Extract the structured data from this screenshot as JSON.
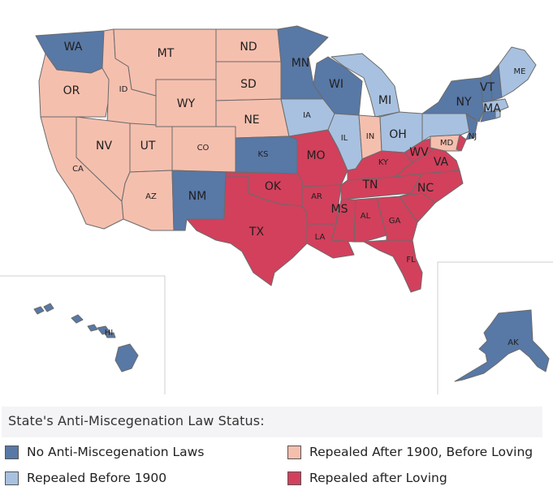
{
  "categories": {
    "none": {
      "label": "No Anti-Miscegenation Laws",
      "color": "#5878a6"
    },
    "pre1900": {
      "label": "Repealed Before 1900",
      "color": "#a8c1e0"
    },
    "post1900": {
      "label": "Repealed After 1900, Before Loving",
      "color": "#f5bfae"
    },
    "loving": {
      "label": "Repealed after Loving",
      "color": "#d2405c"
    }
  },
  "legend": {
    "title": "State's Anti-Miscegenation Law Status:",
    "order": [
      "none",
      "post1900",
      "pre1900",
      "loving"
    ]
  },
  "states": {
    "WA": {
      "label": "WA",
      "status": "none"
    },
    "OR": {
      "label": "OR",
      "status": "post1900"
    },
    "CA": {
      "label": "CA",
      "status": "post1900"
    },
    "ID": {
      "label": "ID",
      "status": "post1900"
    },
    "NV": {
      "label": "NV",
      "status": "post1900"
    },
    "MT": {
      "label": "MT",
      "status": "post1900"
    },
    "WY": {
      "label": "WY",
      "status": "post1900"
    },
    "UT": {
      "label": "UT",
      "status": "post1900"
    },
    "AZ": {
      "label": "AZ",
      "status": "post1900"
    },
    "CO": {
      "label": "CO",
      "status": "post1900"
    },
    "NM": {
      "label": "NM",
      "status": "none"
    },
    "ND": {
      "label": "ND",
      "status": "post1900"
    },
    "SD": {
      "label": "SD",
      "status": "post1900"
    },
    "NE": {
      "label": "NE",
      "status": "post1900"
    },
    "KS": {
      "label": "KS",
      "status": "none"
    },
    "OK": {
      "label": "OK",
      "status": "loving"
    },
    "TX": {
      "label": "TX",
      "status": "loving"
    },
    "MN": {
      "label": "MN",
      "status": "none"
    },
    "IA": {
      "label": "IA",
      "status": "pre1900"
    },
    "MO": {
      "label": "MO",
      "status": "loving"
    },
    "AR": {
      "label": "AR",
      "status": "loving"
    },
    "LA": {
      "label": "LA",
      "status": "loving"
    },
    "WI": {
      "label": "WI",
      "status": "none"
    },
    "IL": {
      "label": "IL",
      "status": "pre1900"
    },
    "MI": {
      "label": "MI",
      "status": "pre1900"
    },
    "IN": {
      "label": "IN",
      "status": "post1900"
    },
    "OH": {
      "label": "OH",
      "status": "pre1900"
    },
    "KY": {
      "label": "KY",
      "status": "loving"
    },
    "TN": {
      "label": "TN",
      "status": "loving"
    },
    "MS": {
      "label": "MS",
      "status": "loving"
    },
    "AL": {
      "label": "AL",
      "status": "loving"
    },
    "GA": {
      "label": "GA",
      "status": "loving"
    },
    "FL": {
      "label": "FL",
      "status": "loving"
    },
    "SC": {
      "label": "",
      "status": "loving"
    },
    "NC": {
      "label": "NC",
      "status": "loving"
    },
    "VA": {
      "label": "VA",
      "status": "loving"
    },
    "WV": {
      "label": "WV",
      "status": "loving"
    },
    "MD": {
      "label": "MD",
      "status": "post1900"
    },
    "DE": {
      "label": "",
      "status": "loving"
    },
    "PA": {
      "label": "",
      "status": "pre1900"
    },
    "NJ": {
      "label": "NJ",
      "status": "none"
    },
    "NY": {
      "label": "NY",
      "status": "none"
    },
    "CT": {
      "label": "",
      "status": "none"
    },
    "RI": {
      "label": "",
      "status": "pre1900"
    },
    "MA": {
      "label": "MA",
      "status": "pre1900"
    },
    "VT": {
      "label": "VT",
      "status": "none"
    },
    "NH": {
      "label": "",
      "status": "none"
    },
    "ME": {
      "label": "ME",
      "status": "pre1900"
    },
    "HI": {
      "label": "HI",
      "status": "none"
    },
    "AK": {
      "label": "AK",
      "status": "none"
    }
  }
}
